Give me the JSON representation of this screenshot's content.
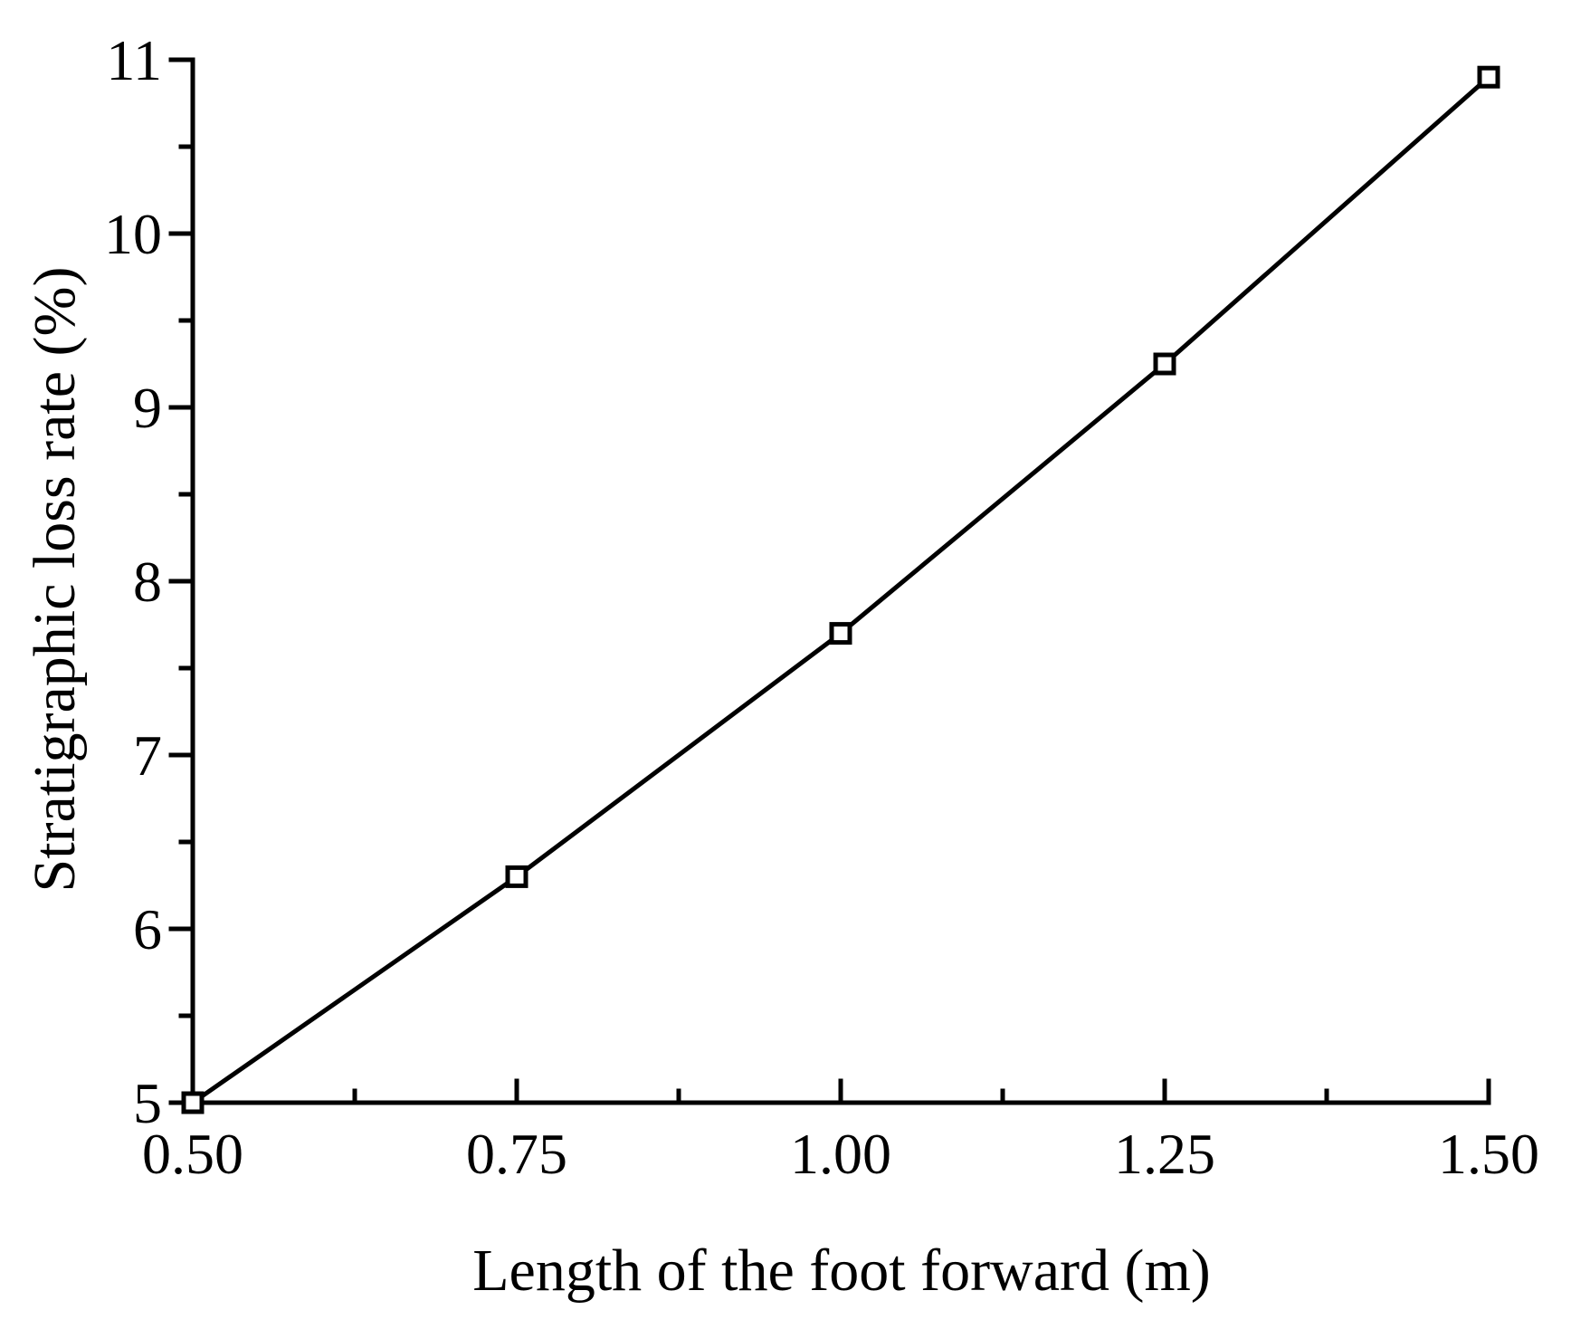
{
  "chart_data": {
    "type": "line",
    "title": "",
    "xlabel": "Length of the foot forward (m)",
    "ylabel": "Stratigraphic loss rate (%)",
    "xlim": [
      0.5,
      1.5
    ],
    "ylim": [
      5,
      11
    ],
    "x_ticks": [
      0.5,
      0.75,
      1.0,
      1.25,
      1.5
    ],
    "x_tick_labels": [
      "0.50",
      "0.75",
      "1.00",
      "1.25",
      "1.50"
    ],
    "x_minor_ticks": [
      0.625,
      0.875,
      1.125,
      1.375
    ],
    "y_ticks": [
      5,
      6,
      7,
      8,
      9,
      10,
      11
    ],
    "y_tick_labels": [
      "5",
      "6",
      "7",
      "8",
      "9",
      "10",
      "11"
    ],
    "y_minor_ticks": [
      5.5,
      6.5,
      7.5,
      8.5,
      9.5,
      10.5
    ],
    "grid": false,
    "legend": "none",
    "series": [
      {
        "marker": "open-square",
        "color": "#000000",
        "x": [
          0.5,
          0.75,
          1.0,
          1.25,
          1.5
        ],
        "y": [
          5.0,
          6.3,
          7.7,
          9.25,
          10.9
        ]
      }
    ]
  }
}
